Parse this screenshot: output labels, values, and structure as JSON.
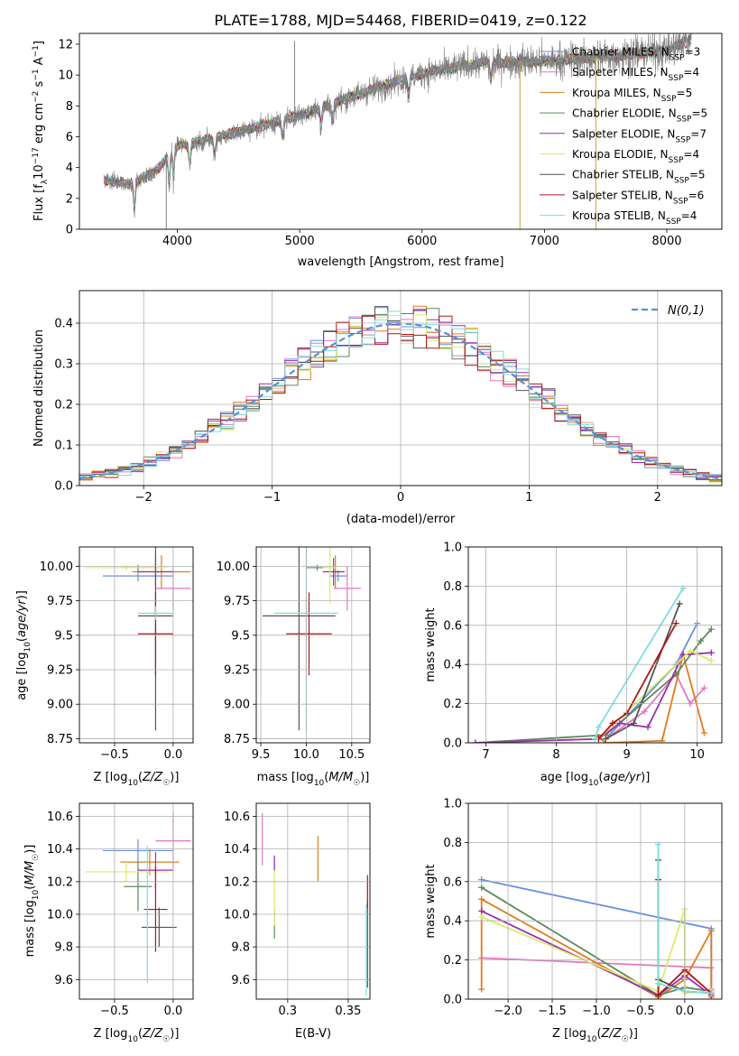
{
  "figure_title": "PLATE=1788, MJD=54468, FIBERID=0419, z=0.122",
  "colors": {
    "ChabrierMILES": "#6a8fe0",
    "SalpeterMILES": "#e377c2",
    "KroupaMILES": "#e07b1a",
    "ChabrierELODIE": "#5b8a5b",
    "SalpeterELODIE": "#9b2fae",
    "KroupaELODIE": "#d9ec6a",
    "ChabrierSTELIB": "#555555",
    "SalpeterSTELIB": "#b01515",
    "KroupaSTELIB": "#80dde0",
    "data": "#808080",
    "normal": "#5a8ed8"
  },
  "legend_models": [
    {
      "key": "ChabrierMILES",
      "label": "Chabrier MILES, N",
      "sub": "SSP",
      "suffix": "=3"
    },
    {
      "key": "SalpeterMILES",
      "label": "Salpeter MILES, N",
      "sub": "SSP",
      "suffix": "=4"
    },
    {
      "key": "KroupaMILES",
      "label": "Kroupa MILES, N",
      "sub": "SSP",
      "suffix": "=5"
    },
    {
      "key": "ChabrierELODIE",
      "label": "Chabrier ELODIE, N",
      "sub": "SSP",
      "suffix": "=5"
    },
    {
      "key": "SalpeterELODIE",
      "label": "Salpeter ELODIE, N",
      "sub": "SSP",
      "suffix": "=7"
    },
    {
      "key": "KroupaELODIE",
      "label": "Kroupa ELODIE, N",
      "sub": "SSP",
      "suffix": "=4"
    },
    {
      "key": "ChabrierSTELIB",
      "label": "Chabrier STELIB, N",
      "sub": "SSP",
      "suffix": "=5"
    },
    {
      "key": "SalpeterSTELIB",
      "label": "Salpeter STELIB, N",
      "sub": "SSP",
      "suffix": "=6"
    },
    {
      "key": "KroupaSTELIB",
      "label": "Kroupa STELIB, N",
      "sub": "SSP",
      "suffix": "=4"
    }
  ],
  "chart_data": [
    {
      "id": "spectrum",
      "type": "line",
      "ylabel": "Flux [f_λ 10^-17 erg cm^-2 s^-1 A^-1]",
      "xlabel": "wavelength [Angstrom, rest frame]",
      "xlim": [
        3200,
        8450
      ],
      "ylim": [
        0,
        12.7
      ],
      "xticks": [
        4000,
        5000,
        6000,
        7000,
        8000
      ],
      "yticks": [
        0,
        2,
        4,
        6,
        8,
        10,
        12
      ],
      "legend_position": "upper-right",
      "grid": false,
      "data_series": {
        "name": "data",
        "x_start": 3400,
        "x_end": 8200,
        "continuum": [
          [
            3400,
            3.2
          ],
          [
            3600,
            2.9
          ],
          [
            3800,
            3.6
          ],
          [
            4000,
            5.4
          ],
          [
            4300,
            5.9
          ],
          [
            4600,
            6.5
          ],
          [
            5000,
            7.4
          ],
          [
            5500,
            8.8
          ],
          [
            6000,
            10.1
          ],
          [
            6500,
            10.8
          ],
          [
            7000,
            10.9
          ],
          [
            7500,
            11.2
          ],
          [
            8000,
            11.6
          ],
          [
            8200,
            12.3
          ]
        ]
      },
      "absorption_features": [
        3650,
        3934,
        3969,
        4102,
        4304,
        4861,
        5175,
        5269,
        5890,
        6563
      ],
      "sharp_spikes": [
        {
          "x": 3910,
          "y_low": 0
        },
        {
          "x": 4958,
          "y_high": 12.2
        },
        {
          "x": 6800,
          "y_low": 0
        },
        {
          "x": 7420,
          "y_low": 0
        }
      ]
    },
    {
      "id": "residuals",
      "type": "histogram",
      "ylabel": "Normed distribution",
      "xlabel": "(data-model)/error",
      "xlim": [
        -2.5,
        2.5
      ],
      "ylim": [
        0,
        0.48
      ],
      "xticks": [
        -2,
        -1,
        0,
        1,
        2
      ],
      "yticks": [
        0.0,
        0.1,
        0.2,
        0.3,
        0.4
      ],
      "grid": true,
      "legend": "N(0,1)",
      "legend_position": "upper-right",
      "bin_width": 0.1
    },
    {
      "id": "age_vs_Z",
      "type": "errorbar",
      "xlabel": "Z [log10(Z/Z☉)]",
      "ylabel": "age  [log10(age/yr)]",
      "xlim": [
        -0.8,
        0.17
      ],
      "ylim": [
        8.72,
        10.14
      ],
      "xticks": [
        -0.5,
        0.0
      ],
      "yticks": [
        8.75,
        9.0,
        9.25,
        9.5,
        9.75,
        10.0
      ],
      "grid": true,
      "points": [
        {
          "key": "ChabrierMILES",
          "x": -0.3,
          "xerr": 0.3,
          "y": 9.93,
          "yerr": 0.04
        },
        {
          "key": "SalpeterMILES",
          "x": 0.0,
          "xerr": 0.15,
          "y": 9.84,
          "yerr": 0.16
        },
        {
          "key": "KroupaMILES",
          "x": -0.1,
          "xerr": 0.25,
          "y": 9.96,
          "yerr": 0.12
        },
        {
          "key": "ChabrierELODIE",
          "x": -0.3,
          "xerr": 0.15,
          "y": 9.99,
          "yerr": 0.02
        },
        {
          "key": "SalpeterELODIE",
          "x": -0.15,
          "xerr": 0.15,
          "y": 9.96,
          "yerr": 0.1
        },
        {
          "key": "KroupaELODIE",
          "x": -0.4,
          "xerr": 0.35,
          "y": 9.99,
          "yerr": 0.02
        },
        {
          "key": "ChabrierSTELIB",
          "x": -0.15,
          "xerr": 0.15,
          "y": 9.64,
          "yerr": 0.83
        },
        {
          "key": "SalpeterSTELIB",
          "x": -0.15,
          "xerr": 0.15,
          "y": 9.51,
          "yerr": 0.3
        },
        {
          "key": "KroupaSTELIB",
          "x": -0.15,
          "xerr": 0.15,
          "y": 9.66,
          "yerr": 0.05
        }
      ]
    },
    {
      "id": "age_vs_mass",
      "type": "errorbar",
      "xlabel": "mass [log10(M/M☉)]",
      "xlim": [
        9.45,
        10.7
      ],
      "ylim": [
        8.72,
        10.14
      ],
      "xticks": [
        9.5,
        10.0,
        10.5
      ],
      "yticks": [
        8.75,
        9.0,
        9.25,
        9.5,
        9.75,
        10.0
      ],
      "grid": true,
      "points": [
        {
          "key": "ChabrierMILES",
          "x": 10.35,
          "xerr": 0.1,
          "y": 9.93,
          "yerr": 0.04
        },
        {
          "key": "SalpeterMILES",
          "x": 10.45,
          "xerr": 0.15,
          "y": 9.84,
          "yerr": 0.16
        },
        {
          "key": "KroupaMILES",
          "x": 10.32,
          "xerr": 0.1,
          "y": 9.96,
          "yerr": 0.12
        },
        {
          "key": "ChabrierELODIE",
          "x": 10.12,
          "xerr": 0.12,
          "y": 9.99,
          "yerr": 0.02
        },
        {
          "key": "SalpeterELODIE",
          "x": 10.3,
          "xerr": 0.12,
          "y": 9.96,
          "yerr": 0.1
        },
        {
          "key": "KroupaELODIE",
          "x": 10.26,
          "xerr": 0.08,
          "y": 9.99,
          "yerr": 0.26
        },
        {
          "key": "ChabrierSTELIB",
          "x": 9.92,
          "xerr": 0.4,
          "y": 9.64,
          "yerr": 0.83
        },
        {
          "key": "SalpeterSTELIB",
          "x": 10.03,
          "xerr": 0.25,
          "y": 9.51,
          "yerr": 0.3
        },
        {
          "key": "KroupaSTELIB",
          "x": 10.0,
          "xerr": 0.35,
          "y": 9.66,
          "yerr": 0.86
        }
      ]
    },
    {
      "id": "weight_vs_age",
      "type": "line",
      "xlabel": "age  [log10(age/yr)]",
      "ylabel": "mass weight",
      "xlim": [
        6.75,
        10.35
      ],
      "ylim": [
        0,
        1.0
      ],
      "xticks": [
        7,
        8,
        9,
        10
      ],
      "yticks": [
        0.0,
        0.2,
        0.4,
        0.6,
        0.8,
        1.0
      ],
      "grid": true,
      "series": [
        {
          "key": "ChabrierMILES",
          "x": [
            8.7,
            9.7,
            10.0
          ],
          "y": [
            0.02,
            0.4,
            0.61
          ]
        },
        {
          "key": "SalpeterMILES",
          "x": [
            8.7,
            9.25,
            9.7,
            9.9,
            10.1
          ],
          "y": [
            0.02,
            0.16,
            0.35,
            0.2,
            0.28
          ]
        },
        {
          "key": "KroupaMILES",
          "x": [
            8.6,
            8.7,
            9.5,
            9.8,
            10.1
          ],
          "y": [
            0.03,
            0.0,
            0.01,
            0.45,
            0.05
          ]
        },
        {
          "key": "ChabrierELODIE",
          "x": [
            6.85,
            8.7,
            9.7,
            10.05,
            10.2
          ],
          "y": [
            0.0,
            0.04,
            0.35,
            0.52,
            0.58
          ]
        },
        {
          "key": "SalpeterELODIE",
          "x": [
            6.85,
            8.6,
            8.9,
            9.3,
            9.8,
            10.2
          ],
          "y": [
            0.0,
            0.02,
            0.1,
            0.08,
            0.45,
            0.46
          ]
        },
        {
          "key": "KroupaELODIE",
          "x": [
            8.6,
            9.9,
            10.2
          ],
          "y": [
            0.02,
            0.47,
            0.42
          ]
        },
        {
          "key": "ChabrierSTELIB",
          "x": [
            8.7,
            9.1,
            9.75
          ],
          "y": [
            0.02,
            0.1,
            0.71
          ]
        },
        {
          "key": "SalpeterSTELIB",
          "x": [
            8.6,
            8.8,
            9.0,
            9.7
          ],
          "y": [
            0.02,
            0.1,
            0.15,
            0.61
          ]
        },
        {
          "key": "KroupaSTELIB",
          "x": [
            8.55,
            8.6,
            9.8
          ],
          "y": [
            0.02,
            0.08,
            0.79
          ]
        }
      ]
    },
    {
      "id": "mass_vs_Z",
      "type": "errorbar",
      "xlabel": "Z [log10(Z/Z☉)]",
      "ylabel": "mass [log10(M/M☉)]",
      "xlim": [
        -0.8,
        0.17
      ],
      "ylim": [
        9.48,
        10.68
      ],
      "xticks": [
        -0.5,
        0.0
      ],
      "yticks": [
        9.6,
        9.8,
        10.0,
        10.2,
        10.4,
        10.6
      ],
      "grid": true,
      "points": [
        {
          "key": "ChabrierMILES",
          "x": -0.3,
          "xerr": 0.3,
          "y": 10.39,
          "yerr": 0.07
        },
        {
          "key": "SalpeterMILES",
          "x": 0.0,
          "xerr": 0.15,
          "y": 10.45,
          "yerr": 0.17
        },
        {
          "key": "KroupaMILES",
          "x": -0.2,
          "xerr": 0.25,
          "y": 10.32,
          "yerr": 0.08
        },
        {
          "key": "ChabrierELODIE",
          "x": -0.3,
          "xerr": 0.12,
          "y": 10.17,
          "yerr": 0.15
        },
        {
          "key": "SalpeterELODIE",
          "x": -0.15,
          "xerr": 0.15,
          "y": 10.27,
          "yerr": 0.11
        },
        {
          "key": "KroupaELODIE",
          "x": -0.4,
          "xerr": 0.35,
          "y": 10.26,
          "yerr": 0.06
        },
        {
          "key": "ChabrierSTELIB",
          "x": -0.12,
          "xerr": 0.15,
          "y": 9.92,
          "yerr": 0.12
        },
        {
          "key": "SalpeterSTELIB",
          "x": -0.15,
          "xerr": 0.1,
          "y": 10.03,
          "yerr": 0.26
        },
        {
          "key": "KroupaSTELIB",
          "x": -0.22,
          "xerr": 0.02,
          "y": 10.0,
          "yerr": 0.42
        }
      ]
    },
    {
      "id": "mass_vs_EBV",
      "type": "errorbar",
      "xlabel": "E(B-V)",
      "xlim": [
        0.274,
        0.368
      ],
      "ylim": [
        9.48,
        10.68
      ],
      "xticks": [
        0.3,
        0.35
      ],
      "yticks": [
        9.6,
        9.8,
        10.0,
        10.2,
        10.4,
        10.6
      ],
      "grid": true,
      "points": [
        {
          "key": "ChabrierMILES",
          "x": 0.289,
          "y": 10.31,
          "yerr": 0.05
        },
        {
          "key": "SalpeterMILES",
          "x": 0.279,
          "y": 10.46,
          "yerr": 0.16
        },
        {
          "key": "KroupaMILES",
          "x": 0.325,
          "y": 10.34,
          "yerr": 0.14
        },
        {
          "key": "ChabrierELODIE",
          "x": 0.289,
          "y": 9.94,
          "yerr": 0.09
        },
        {
          "key": "SalpeterELODIE",
          "x": 0.289,
          "y": 10.31,
          "yerr": 0.05
        },
        {
          "key": "KroupaELODIE",
          "x": 0.289,
          "y": 10.1,
          "yerr": 0.17
        },
        {
          "key": "ChabrierSTELIB",
          "x": 0.366,
          "y": 9.82,
          "yerr": 0.27
        },
        {
          "key": "SalpeterSTELIB",
          "x": 0.366,
          "y": 10.14,
          "yerr": 0.1
        },
        {
          "key": "KroupaSTELIB",
          "x": 0.365,
          "y": 9.78,
          "yerr": 0.28
        }
      ]
    },
    {
      "id": "weight_vs_Z",
      "type": "line",
      "xlabel": "Z [log10(Z/Z☉)]",
      "ylabel": "mass weight",
      "xlim": [
        -2.45,
        0.42
      ],
      "ylim": [
        0,
        1.0
      ],
      "xticks": [
        -2.0,
        -1.5,
        -1.0,
        -0.5,
        0.0
      ],
      "yticks": [
        0.0,
        0.2,
        0.4,
        0.6,
        0.8,
        1.0
      ],
      "grid": true,
      "series": [
        {
          "key": "ChabrierMILES",
          "x": [
            -2.3,
            0.3,
            0.3
          ],
          "y": [
            0.61,
            0.36,
            0.03
          ]
        },
        {
          "key": "SalpeterMILES",
          "x": [
            -2.3,
            0.3,
            0.3
          ],
          "y": [
            0.21,
            0.16,
            0.05
          ]
        },
        {
          "key": "KroupaMILES",
          "x": [
            -2.3,
            -2.3,
            -0.3,
            0.0,
            0.3,
            0.3
          ],
          "y": [
            0.05,
            0.51,
            0.01,
            0.1,
            0.35,
            0.01
          ]
        },
        {
          "key": "ChabrierELODIE",
          "x": [
            -2.3,
            -0.3,
            0.0,
            0.3
          ],
          "y": [
            0.57,
            0.02,
            0.06,
            0.04
          ]
        },
        {
          "key": "SalpeterELODIE",
          "x": [
            -2.3,
            -0.3,
            0.0,
            0.3
          ],
          "y": [
            0.45,
            0.02,
            0.12,
            0.02
          ]
        },
        {
          "key": "KroupaELODIE",
          "x": [
            -2.3,
            -0.3,
            0.0,
            0.0,
            0.3
          ],
          "y": [
            0.42,
            0.04,
            0.46,
            0.03,
            0.04
          ]
        },
        {
          "key": "ChabrierSTELIB",
          "x": [
            -0.3,
            -0.3,
            0.0,
            0.3
          ],
          "y": [
            0.71,
            0.1,
            0.04,
            0.03
          ]
        },
        {
          "key": "SalpeterSTELIB",
          "x": [
            -0.3,
            -0.3,
            0.0,
            0.3
          ],
          "y": [
            0.61,
            0.02,
            0.15,
            0.03
          ]
        },
        {
          "key": "KroupaSTELIB",
          "x": [
            -0.3,
            -0.3,
            0.0,
            0.3
          ],
          "y": [
            0.79,
            0.08,
            0.04,
            0.03
          ]
        }
      ]
    }
  ]
}
